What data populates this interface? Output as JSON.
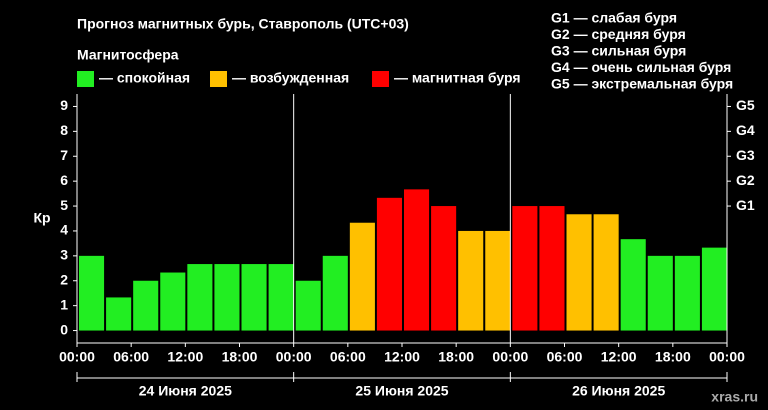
{
  "chart_data": {
    "type": "bar",
    "title": "Прогноз магнитных бурь, Ставрополь (UTC+03)",
    "legend_title": "Магнитосфера",
    "legend": [
      {
        "name": "— спокойная",
        "color": "#22ee22"
      },
      {
        "name": "— возбужденная",
        "color": "#ffc000"
      },
      {
        "name": "— магнитная буря",
        "color": "#ff0000"
      }
    ],
    "storm_scale": [
      "G1 — слабая буря",
      "G2 — средняя буря",
      "G3 — сильная буря",
      "G4 — очень сильная буря",
      "G5 — экстремальная буря"
    ],
    "y_label": "Кр",
    "x": [
      0,
      3,
      6,
      9,
      12,
      15,
      18,
      21,
      24,
      27,
      30,
      33,
      36,
      39,
      42,
      45,
      48,
      51,
      54,
      57,
      60,
      63,
      66,
      69
    ],
    "values": [
      3,
      1.33,
      2,
      2.33,
      2.67,
      2.67,
      2.67,
      2.67,
      2,
      3,
      4.33,
      5.33,
      5.67,
      5,
      4,
      4,
      5,
      5,
      4.67,
      4.67,
      3.67,
      3,
      3,
      3.33
    ],
    "colors": [
      "#22ee22",
      "#22ee22",
      "#22ee22",
      "#22ee22",
      "#22ee22",
      "#22ee22",
      "#22ee22",
      "#22ee22",
      "#22ee22",
      "#22ee22",
      "#ffc000",
      "#ff0000",
      "#ff0000",
      "#ff0000",
      "#ffc000",
      "#ffc000",
      "#ff0000",
      "#ff0000",
      "#ffc000",
      "#ffc000",
      "#22ee22",
      "#22ee22",
      "#22ee22",
      "#22ee22"
    ],
    "xlim": [
      0,
      72
    ],
    "xticks": [
      {
        "value": 0,
        "label": "00:00"
      },
      {
        "value": 6,
        "label": "06:00"
      },
      {
        "value": 12,
        "label": "12:00"
      },
      {
        "value": 18,
        "label": "18:00"
      },
      {
        "value": 24,
        "label": "00:00"
      },
      {
        "value": 30,
        "label": "06:00"
      },
      {
        "value": 36,
        "label": "12:00"
      },
      {
        "value": 42,
        "label": "18:00"
      },
      {
        "value": 48,
        "label": "00:00"
      },
      {
        "value": 54,
        "label": "06:00"
      },
      {
        "value": 60,
        "label": "12:00"
      },
      {
        "value": 66,
        "label": "18:00"
      },
      {
        "value": 72,
        "label": "00:00"
      }
    ],
    "day_separators": [
      24,
      48
    ],
    "days": [
      "24 Июня 2025",
      "25 Июня 2025",
      "26 Июня 2025"
    ],
    "ylim": [
      -0.5,
      9.5
    ],
    "yticks": [
      0,
      1,
      2,
      3,
      4,
      5,
      6,
      7,
      8,
      9
    ],
    "y2lim": [
      -0.5,
      9.5
    ],
    "y2ticks": [
      {
        "value": 5,
        "label": "G1"
      },
      {
        "value": 6,
        "label": "G2"
      },
      {
        "value": 7,
        "label": "G3"
      },
      {
        "value": 8,
        "label": "G4"
      },
      {
        "value": 9,
        "label": "G5"
      }
    ],
    "watermark": "xras.ru"
  }
}
